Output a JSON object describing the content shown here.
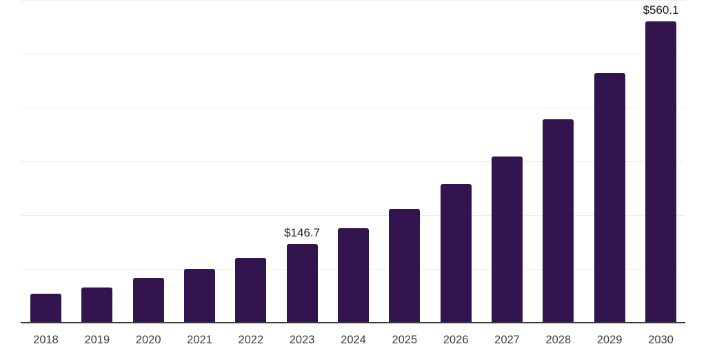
{
  "chart_data": {
    "type": "bar",
    "title": "",
    "xlabel": "",
    "ylabel": "",
    "categories": [
      "2018",
      "2019",
      "2020",
      "2021",
      "2022",
      "2023",
      "2024",
      "2025",
      "2026",
      "2027",
      "2028",
      "2029",
      "2030"
    ],
    "values": [
      54.0,
      65.0,
      84.0,
      100.4,
      121.0,
      146.7,
      175.6,
      211.6,
      258.0,
      308.6,
      378.0,
      463.6,
      560.1
    ],
    "value_labels": [
      {
        "index": 5,
        "text": "$146.7"
      },
      {
        "index": 12,
        "text": "$560.1"
      }
    ],
    "ylim": [
      0,
      600
    ],
    "grid": true,
    "gridline_step": 100,
    "legend": false,
    "colors": {
      "bar": "#32154F",
      "axis_line": "#3a3a3a",
      "gridline": "#ededed",
      "tick_label": "#3d3d3d",
      "value_label": "#1a1a1a"
    }
  }
}
